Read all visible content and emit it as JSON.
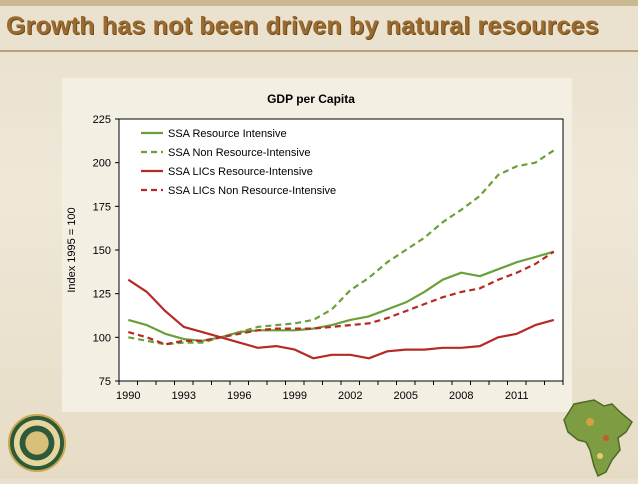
{
  "slide": {
    "title": "Growth has not been driven by natural resources"
  },
  "chart_data": {
    "type": "line",
    "title": "GDP per Capita",
    "xlabel": "",
    "ylabel": "Index 1995 = 100",
    "ylim": [
      75,
      225
    ],
    "yticks": [
      75,
      100,
      125,
      150,
      175,
      200,
      225
    ],
    "xticks": [
      1990,
      1993,
      1996,
      1999,
      2002,
      2005,
      2008,
      2011
    ],
    "x": [
      1990,
      1991,
      1992,
      1993,
      1994,
      1995,
      1996,
      1997,
      1998,
      1999,
      2000,
      2001,
      2002,
      2003,
      2004,
      2005,
      2006,
      2007,
      2008,
      2009,
      2010,
      2011,
      2012,
      2013
    ],
    "legend_position": "top-left",
    "series": [
      {
        "name": "SSA Resource Intensive",
        "color": "#6aa03a",
        "dash": false,
        "values": [
          110,
          107,
          102,
          99,
          98,
          100,
          103,
          104,
          104,
          104,
          105,
          107,
          110,
          112,
          116,
          120,
          126,
          133,
          137,
          135,
          139,
          143,
          146,
          149
        ]
      },
      {
        "name": "SSA Non Resource-Intensive",
        "color": "#6aa03a",
        "dash": true,
        "values": [
          100,
          98,
          96,
          97,
          97,
          100,
          103,
          106,
          107,
          108,
          110,
          116,
          127,
          134,
          143,
          150,
          157,
          166,
          173,
          181,
          193,
          198,
          200,
          207
        ]
      },
      {
        "name": "SSA LICs Resource-Intensive",
        "color": "#b52a24",
        "dash": false,
        "values": [
          133,
          126,
          115,
          106,
          103,
          100,
          97,
          94,
          95,
          93,
          88,
          90,
          90,
          88,
          92,
          93,
          93,
          94,
          94,
          95,
          100,
          102,
          107,
          110
        ]
      },
      {
        "name": "SSA LICs Non Resource-Intensive",
        "color": "#b52a24",
        "dash": true,
        "values": [
          103,
          100,
          96,
          98,
          98,
          100,
          102,
          104,
          105,
          105,
          105,
          106,
          107,
          108,
          111,
          115,
          119,
          123,
          126,
          128,
          133,
          137,
          142,
          149
        ]
      }
    ]
  }
}
